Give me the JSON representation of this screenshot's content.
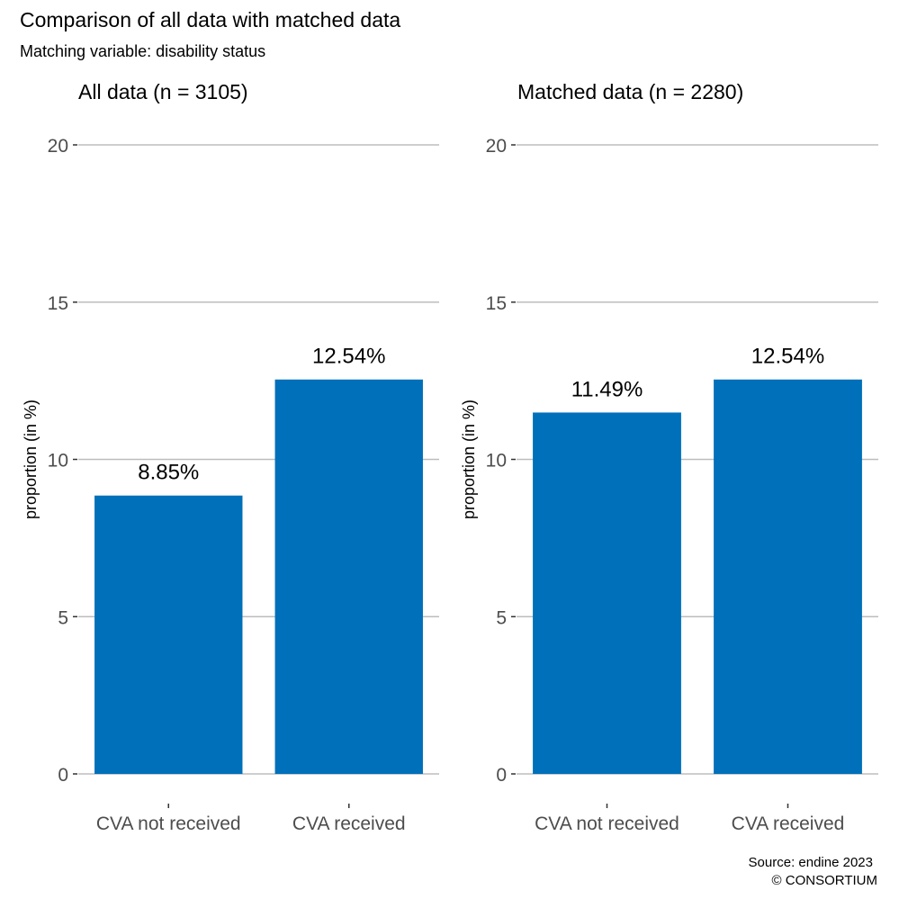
{
  "title": "Comparison of all data with matched data",
  "subtitle": "Matching variable: disability status",
  "caption_line1": "Source: endine 2023",
  "caption_line2": "© CONSORTIUM",
  "colors": {
    "bar": "#0070BA"
  },
  "chart_data": [
    {
      "type": "bar",
      "title": "All data (n = 3105)",
      "categories": [
        "CVA not received",
        "CVA received"
      ],
      "values": [
        8.85,
        12.54
      ],
      "data_labels": [
        "8.85%",
        "12.54%"
      ],
      "ylabel": "proportion (in %)",
      "xlabel": "",
      "ylim": [
        0,
        20
      ],
      "yticks": [
        0,
        5,
        10,
        15,
        20
      ],
      "grid": true
    },
    {
      "type": "bar",
      "title": "Matched data (n = 2280)",
      "categories": [
        "CVA not received",
        "CVA received"
      ],
      "values": [
        11.49,
        12.54
      ],
      "data_labels": [
        "11.49%",
        "12.54%"
      ],
      "ylabel": "proportion (in %)",
      "xlabel": "",
      "ylim": [
        0,
        20
      ],
      "yticks": [
        0,
        5,
        10,
        15,
        20
      ],
      "grid": true
    }
  ]
}
